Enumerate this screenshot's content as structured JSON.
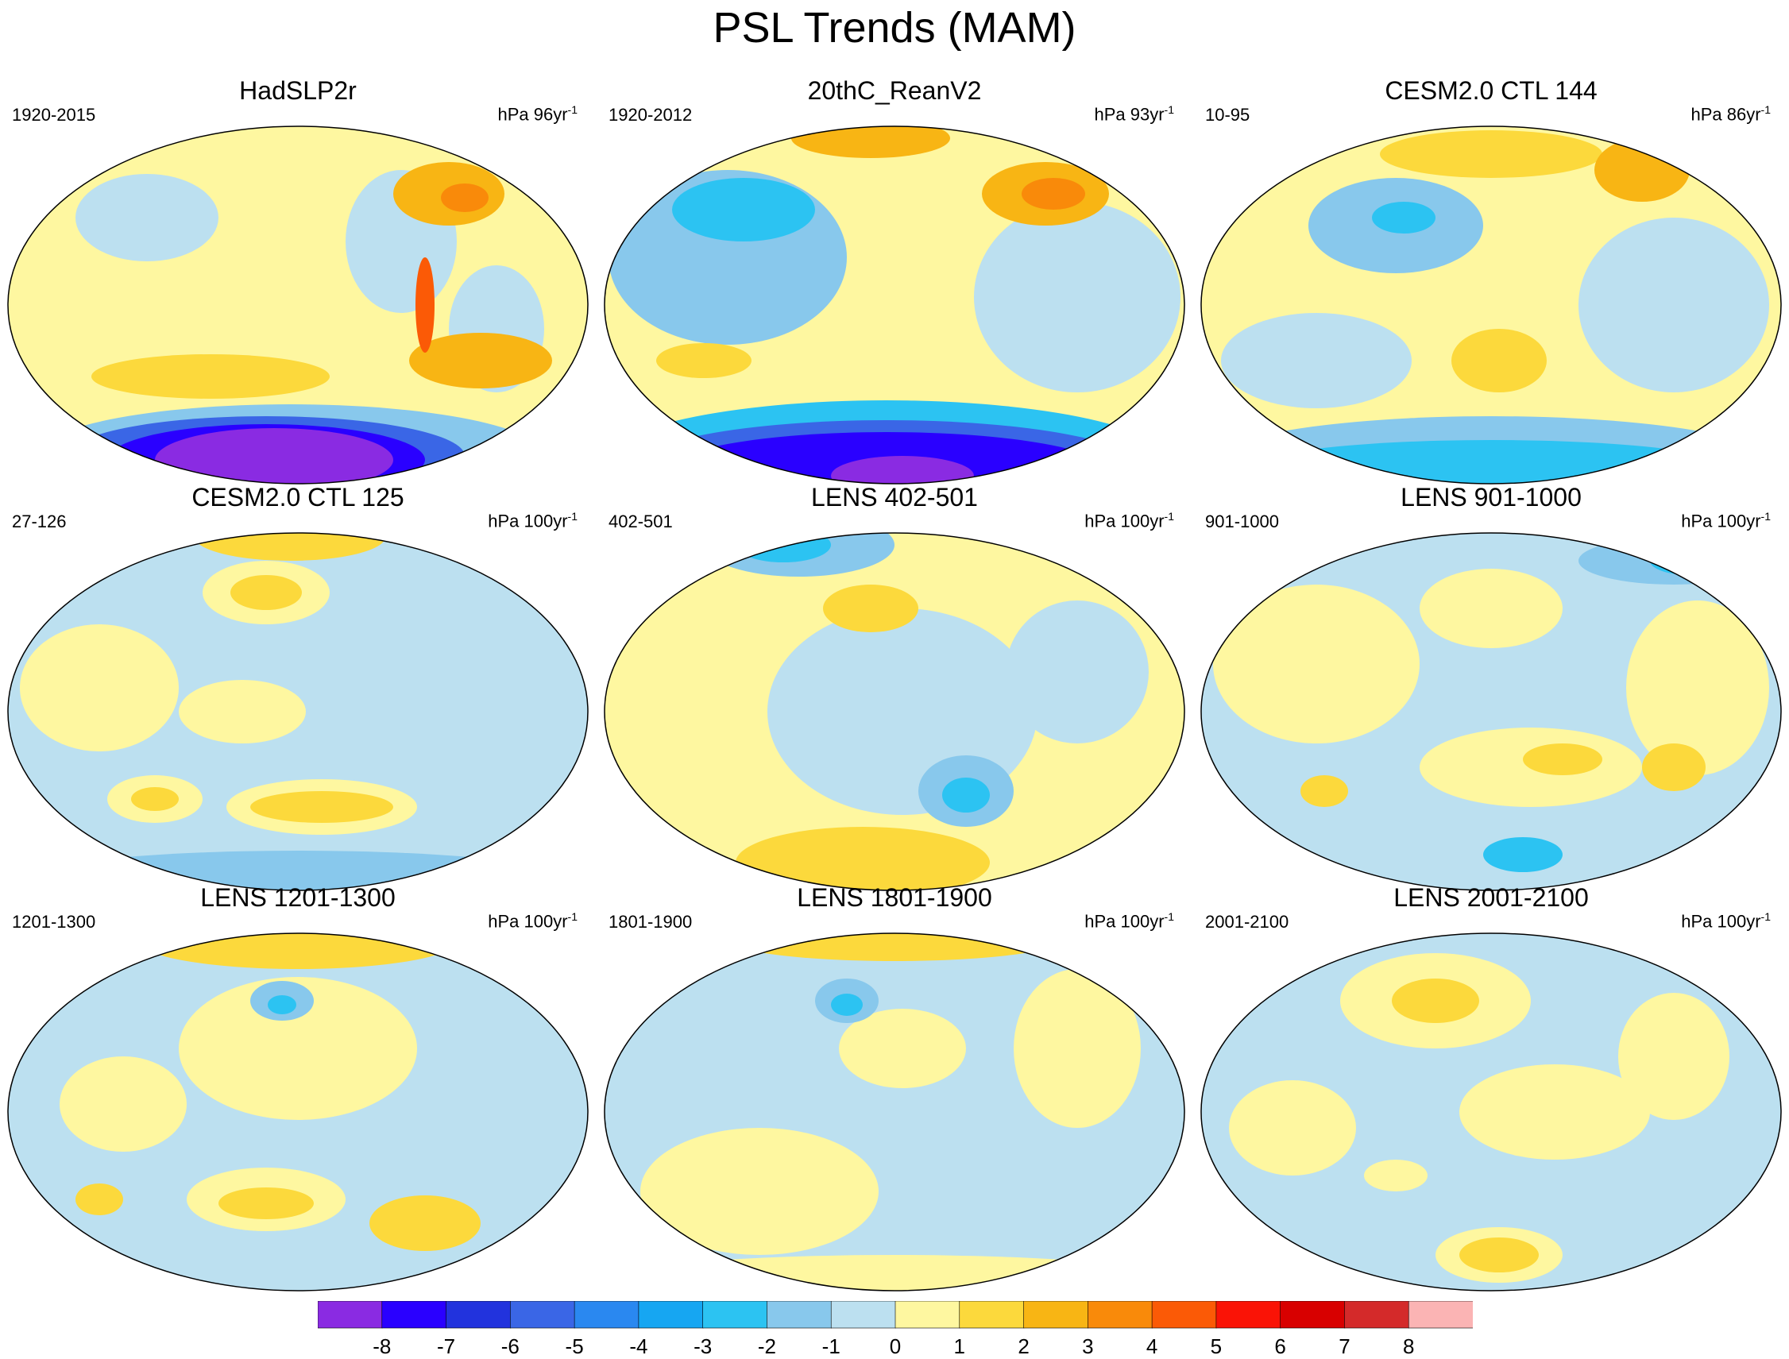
{
  "figure": {
    "title": "PSL Trends (MAM)"
  },
  "panels": [
    {
      "title": "HadSLP2r",
      "period": "1920-2015",
      "units": "hPa 96yr",
      "units_exp": "-1"
    },
    {
      "title": "20thC_ReanV2",
      "period": "1920-2012",
      "units": "hPa 93yr",
      "units_exp": "-1"
    },
    {
      "title": "CESM2.0 CTL 144",
      "period": "10-95",
      "units": "hPa 86yr",
      "units_exp": "-1"
    },
    {
      "title": "CESM2.0 CTL 125",
      "period": "27-126",
      "units": "hPa 100yr",
      "units_exp": "-1"
    },
    {
      "title": "LENS 402-501",
      "period": "402-501",
      "units": "hPa 100yr",
      "units_exp": "-1"
    },
    {
      "title": "LENS 901-1000",
      "period": "901-1000",
      "units": "hPa 100yr",
      "units_exp": "-1"
    },
    {
      "title": "LENS 1201-1300",
      "period": "1201-1300",
      "units": "hPa 100yr",
      "units_exp": "-1"
    },
    {
      "title": "LENS 1801-1900",
      "period": "1801-1900",
      "units": "hPa 100yr",
      "units_exp": "-1"
    },
    {
      "title": "LENS 2001-2100",
      "period": "2001-2100",
      "units": "hPa 100yr",
      "units_exp": "-1"
    }
  ],
  "colorbar": {
    "labels": [
      "-8",
      "-7",
      "-6",
      "-5",
      "-4",
      "-3",
      "-2",
      "-1",
      "0",
      "1",
      "2",
      "3",
      "4",
      "5",
      "6",
      "7",
      "8"
    ],
    "colors": [
      "#8a2be2",
      "#2a00ff",
      "#2233dd",
      "#3a66e6",
      "#2a88f0",
      "#16a6f2",
      "#2cc3f2",
      "#88c8ec",
      "#bce0f0",
      "#fef7a0",
      "#fcd93c",
      "#f8b514",
      "#f98a0a",
      "#fb5a06",
      "#fa1306",
      "#d80000",
      "#d42a2a",
      "#fbb4b4"
    ]
  }
}
